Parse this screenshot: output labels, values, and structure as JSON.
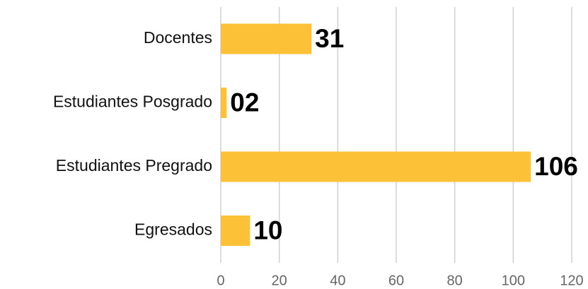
{
  "chart_data": {
    "type": "bar",
    "orientation": "horizontal",
    "categories": [
      "Docentes",
      "Estudiantes Posgrado",
      "Estudiantes Pregrado",
      "Egresados"
    ],
    "values": [
      31,
      2,
      106,
      10
    ],
    "value_labels": [
      "31",
      "02",
      "106",
      "10"
    ],
    "color": "#fcc137",
    "xlim": [
      0,
      120
    ],
    "xticks": [
      0,
      20,
      40,
      60,
      80,
      100,
      120
    ],
    "grid": true
  }
}
